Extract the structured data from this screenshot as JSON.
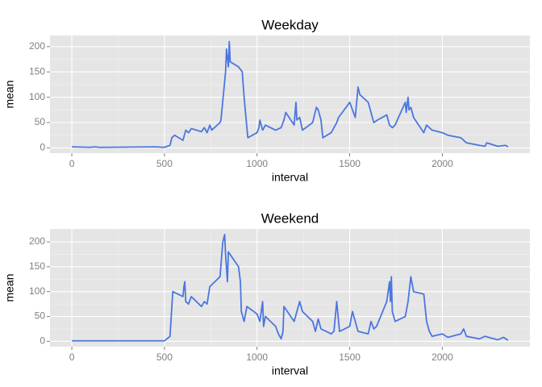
{
  "chart_data": [
    {
      "type": "line",
      "title": "Weekday",
      "x_label": "interval",
      "y_label": "mean",
      "color": "#4a76e0",
      "x": [
        0,
        100,
        125,
        150,
        450,
        500,
        530,
        540,
        555,
        600,
        615,
        630,
        645,
        700,
        715,
        730,
        745,
        755,
        800,
        805,
        830,
        835,
        845,
        850,
        855,
        900,
        920,
        930,
        945,
        950,
        1000,
        1010,
        1015,
        1030,
        1045,
        1100,
        1130,
        1145,
        1155,
        1200,
        1210,
        1215,
        1230,
        1245,
        1300,
        1320,
        1330,
        1345,
        1355,
        1400,
        1430,
        1440,
        1500,
        1520,
        1530,
        1545,
        1555,
        1600,
        1615,
        1630,
        1650,
        1700,
        1715,
        1730,
        1745,
        1800,
        1805,
        1815,
        1820,
        1830,
        1845,
        1900,
        1915,
        1930,
        1945,
        2000,
        2030,
        2100,
        2130,
        2200,
        2230,
        2240,
        2300,
        2340,
        2355
      ],
      "values": [
        2,
        1,
        2,
        1,
        2,
        1,
        5,
        20,
        25,
        15,
        35,
        30,
        38,
        32,
        40,
        30,
        45,
        35,
        50,
        55,
        150,
        195,
        160,
        210,
        170,
        160,
        150,
        100,
        40,
        20,
        30,
        40,
        55,
        35,
        45,
        35,
        40,
        55,
        70,
        45,
        90,
        55,
        60,
        35,
        50,
        80,
        75,
        55,
        20,
        30,
        50,
        60,
        90,
        70,
        60,
        120,
        105,
        90,
        70,
        50,
        55,
        65,
        45,
        40,
        45,
        90,
        70,
        100,
        75,
        80,
        60,
        30,
        45,
        40,
        35,
        30,
        25,
        20,
        10,
        5,
        3,
        10,
        3,
        5,
        2
      ],
      "xlim": [
        -117.75,
        2472.75
      ],
      "xticks": [
        0,
        500,
        1000,
        1500,
        2000
      ],
      "ylim": [
        -10.5,
        222
      ],
      "yticks": [
        0,
        50,
        100,
        150,
        200
      ],
      "grid": true
    },
    {
      "type": "line",
      "title": "Weekend",
      "x_label": "interval",
      "y_label": "mean",
      "color": "#4a76e0",
      "x": [
        0,
        300,
        500,
        530,
        545,
        600,
        605,
        610,
        615,
        630,
        645,
        700,
        715,
        730,
        745,
        800,
        815,
        825,
        830,
        840,
        845,
        900,
        910,
        915,
        930,
        945,
        1000,
        1015,
        1030,
        1035,
        1045,
        1100,
        1115,
        1130,
        1140,
        1145,
        1200,
        1215,
        1230,
        1245,
        1300,
        1315,
        1330,
        1345,
        1400,
        1415,
        1430,
        1445,
        1500,
        1515,
        1530,
        1545,
        1600,
        1615,
        1630,
        1645,
        1700,
        1715,
        1720,
        1725,
        1730,
        1745,
        1800,
        1815,
        1830,
        1845,
        1900,
        1915,
        1930,
        1945,
        2000,
        2030,
        2100,
        2115,
        2130,
        2200,
        2230,
        2300,
        2330,
        2355
      ],
      "values": [
        1,
        1,
        1,
        10,
        100,
        90,
        110,
        120,
        80,
        75,
        90,
        70,
        80,
        75,
        110,
        130,
        200,
        215,
        175,
        120,
        180,
        150,
        120,
        60,
        40,
        70,
        55,
        40,
        80,
        30,
        50,
        30,
        15,
        5,
        20,
        70,
        40,
        60,
        80,
        60,
        40,
        20,
        45,
        25,
        15,
        20,
        80,
        20,
        30,
        60,
        40,
        20,
        15,
        40,
        25,
        30,
        80,
        120,
        80,
        130,
        60,
        40,
        50,
        80,
        130,
        100,
        95,
        40,
        20,
        10,
        15,
        8,
        15,
        25,
        10,
        5,
        10,
        3,
        8,
        2
      ],
      "xlim": [
        -117.75,
        2472.75
      ],
      "xticks": [
        0,
        500,
        1000,
        1500,
        2000
      ],
      "ylim": [
        -10.8,
        226
      ],
      "yticks": [
        0,
        50,
        100,
        150,
        200
      ],
      "grid": true
    }
  ]
}
